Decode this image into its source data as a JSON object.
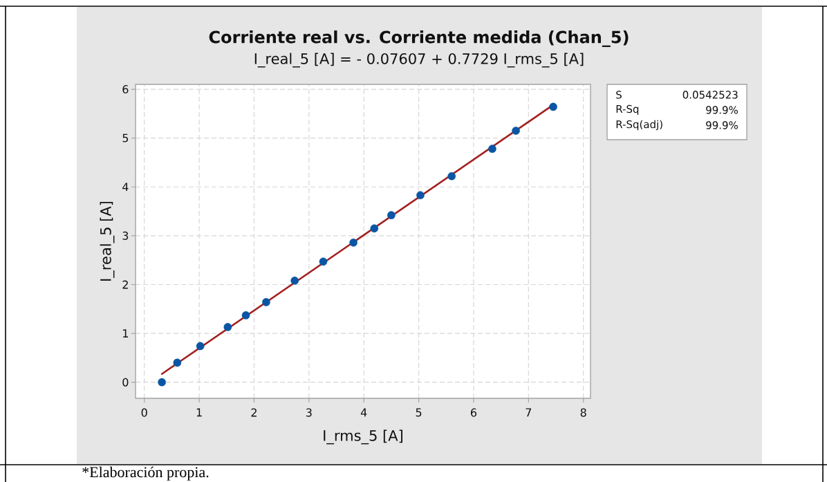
{
  "chart_data": {
    "type": "scatter",
    "title": "Corriente real vs. Corriente medida (Chan_5)",
    "subtitle": "I_real_5 [A] = - 0.07607 + 0.7729 I_rms_5 [A]",
    "xlabel": "I_rms_5 [A]",
    "ylabel": "I_real_5 [A]",
    "series": [
      {
        "color": "#0a56a5",
        "marker": "circle",
        "x": [
          0.32,
          0.6,
          1.02,
          1.52,
          1.85,
          2.22,
          2.74,
          3.26,
          3.81,
          4.19,
          4.5,
          5.03,
          5.6,
          6.34,
          6.77,
          7.45
        ],
        "values": [
          0.0,
          0.4,
          0.74,
          1.13,
          1.37,
          1.64,
          2.08,
          2.47,
          2.86,
          3.15,
          3.42,
          3.83,
          4.22,
          4.78,
          5.15,
          5.64
        ]
      },
      {
        "type": "line",
        "color": "#a1201f",
        "line_style": "solid",
        "x": [
          0.32,
          7.45
        ],
        "values": [
          0.17,
          5.68
        ]
      }
    ],
    "xlim": [
      -0.16,
      8.13
    ],
    "ylim": [
      -0.33,
      6.1
    ],
    "xticks": [
      0,
      1,
      2,
      3,
      4,
      5,
      6,
      7,
      8
    ],
    "yticks": [
      0,
      1,
      2,
      3,
      4,
      5,
      6
    ],
    "grid": true,
    "annotations": [
      "S",
      "0.0542523",
      "R-Sq",
      "99.9%",
      "R-Sq(adj)",
      "99.9%",
      "*Elaboración propia."
    ]
  }
}
